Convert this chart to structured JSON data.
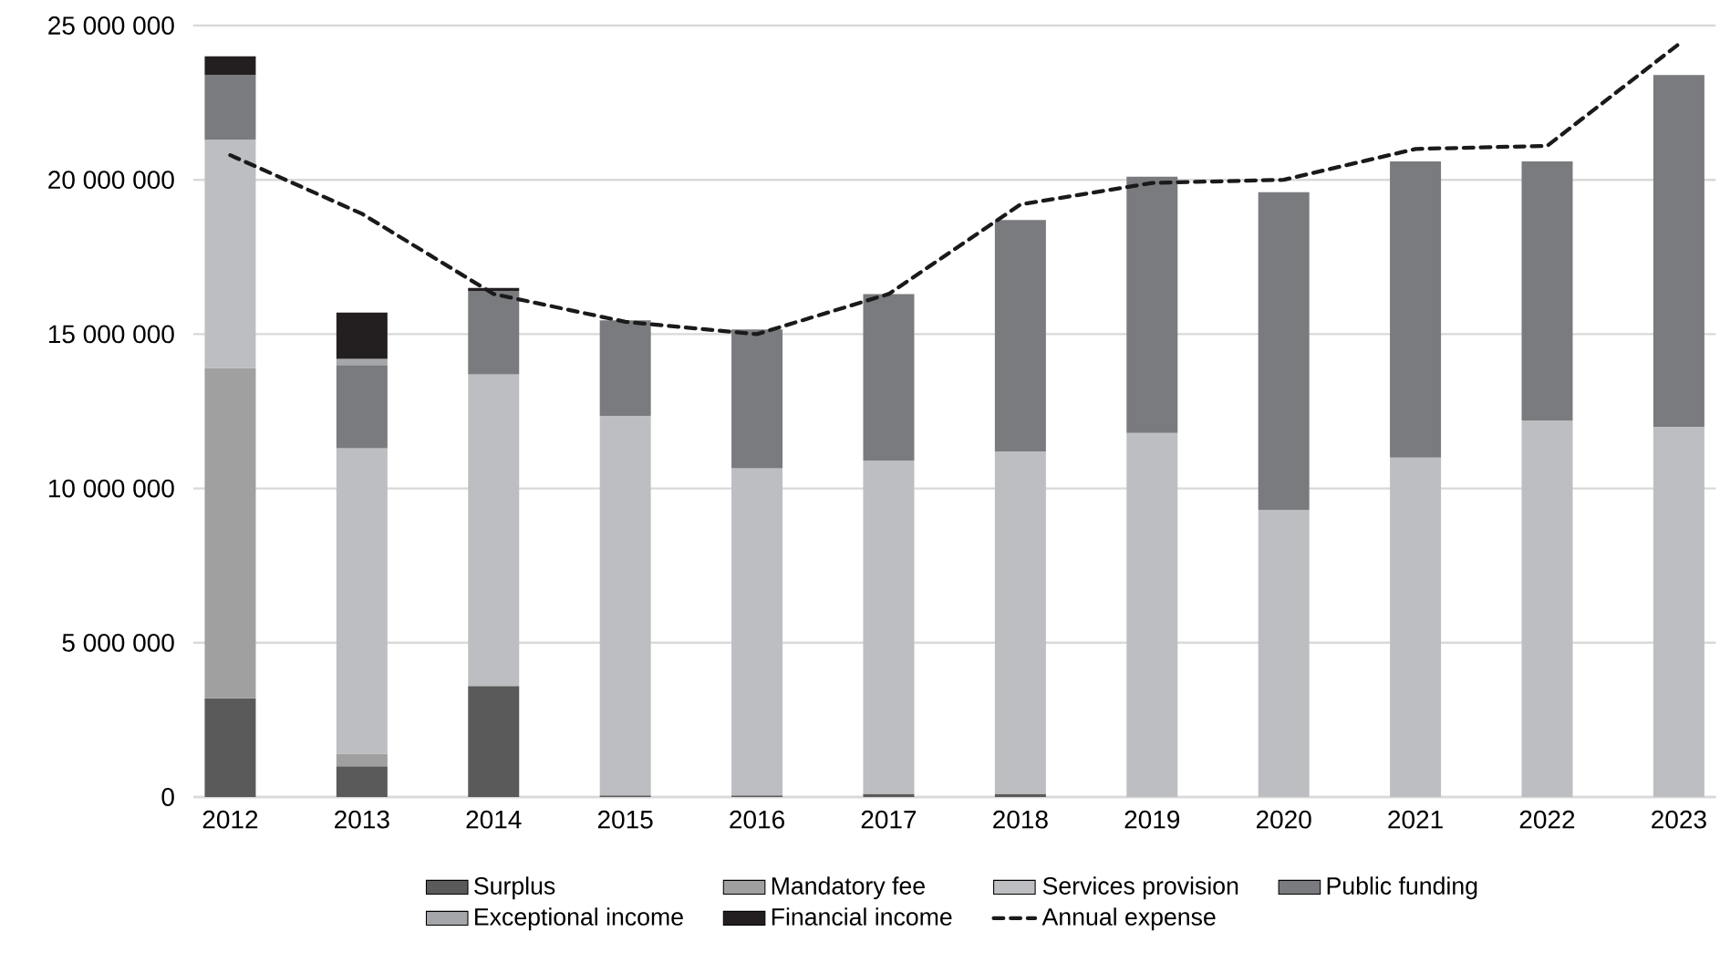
{
  "chart_data": {
    "type": "bar",
    "stacked": true,
    "categories": [
      "2012",
      "2013",
      "2014",
      "2015",
      "2016",
      "2017",
      "2018",
      "2019",
      "2020",
      "2021",
      "2022",
      "2023"
    ],
    "series": [
      {
        "name": "Surplus",
        "color": "#5a5a5a",
        "values": [
          3200000,
          1000000,
          3600000,
          50000,
          50000,
          100000,
          100000,
          0,
          0,
          0,
          0,
          0
        ]
      },
      {
        "name": "Mandatory fee",
        "color": "#a0a0a0",
        "values": [
          10700000,
          400000,
          0,
          0,
          0,
          0,
          0,
          0,
          0,
          0,
          0,
          0
        ]
      },
      {
        "name": "Services provision",
        "color": "#bdbec1",
        "values": [
          7400000,
          9900000,
          10100000,
          12300000,
          10600000,
          10800000,
          11100000,
          11800000,
          9300000,
          11000000,
          12200000,
          12000000
        ]
      },
      {
        "name": "Public funding",
        "color": "#7a7b7e",
        "values": [
          2100000,
          2700000,
          2700000,
          3100000,
          4500000,
          5400000,
          7500000,
          8300000,
          10300000,
          9600000,
          8400000,
          11400000
        ]
      },
      {
        "name": "Exceptional income",
        "color": "#a5a6a9",
        "values": [
          0,
          200000,
          0,
          0,
          0,
          0,
          0,
          0,
          0,
          0,
          0,
          0
        ]
      },
      {
        "name": "Financial income",
        "color": "#231f20",
        "values": [
          600000,
          1500000,
          100000,
          0,
          0,
          0,
          0,
          0,
          0,
          0,
          0,
          0
        ]
      },
      {
        "name": "Annual expense",
        "type": "line",
        "color": "#1a1a1a",
        "line_style": "dashed",
        "values": [
          20800000,
          18900000,
          16300000,
          15400000,
          15000000,
          16300000,
          19200000,
          19900000,
          20000000,
          21000000,
          21100000,
          24400000
        ]
      }
    ],
    "ylim": [
      0,
      25000000
    ],
    "yticks": [
      {
        "value": 0,
        "label": "0"
      },
      {
        "value": 5000000,
        "label": "5 000 000"
      },
      {
        "value": 10000000,
        "label": "10 000 000"
      },
      {
        "value": 15000000,
        "label": "15 000 000"
      },
      {
        "value": 20000000,
        "label": "20 000 000"
      },
      {
        "value": 25000000,
        "label": "25 000 000"
      }
    ],
    "grid": "y",
    "legend": "bottom"
  }
}
